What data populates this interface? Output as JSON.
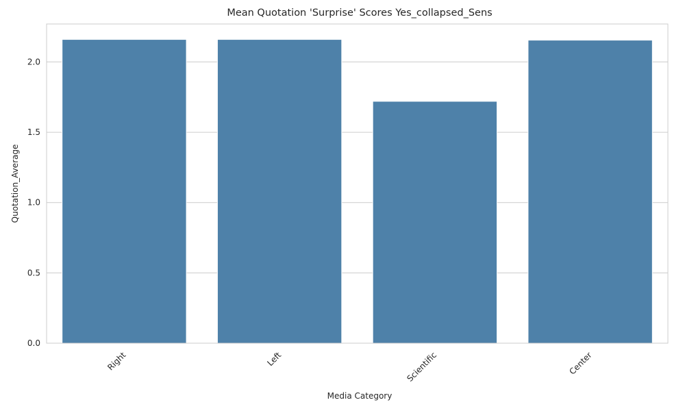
{
  "chart_data": {
    "type": "bar",
    "title": "Mean Quotation 'Surprise' Scores Yes_collapsed_Sens",
    "xlabel": "Media Category",
    "ylabel": "Quotation_Average",
    "categories": [
      "Right",
      "Left",
      "Scientific",
      "Center"
    ],
    "values": [
      2.16,
      2.16,
      1.72,
      2.155
    ],
    "ylim": [
      0,
      2.27
    ],
    "yticks": [
      "0.0",
      "0.5",
      "1.0",
      "1.5",
      "2.0"
    ],
    "grid": "horizontal",
    "bar_color": "#4e81a9",
    "x_tick_rotation": "45"
  }
}
